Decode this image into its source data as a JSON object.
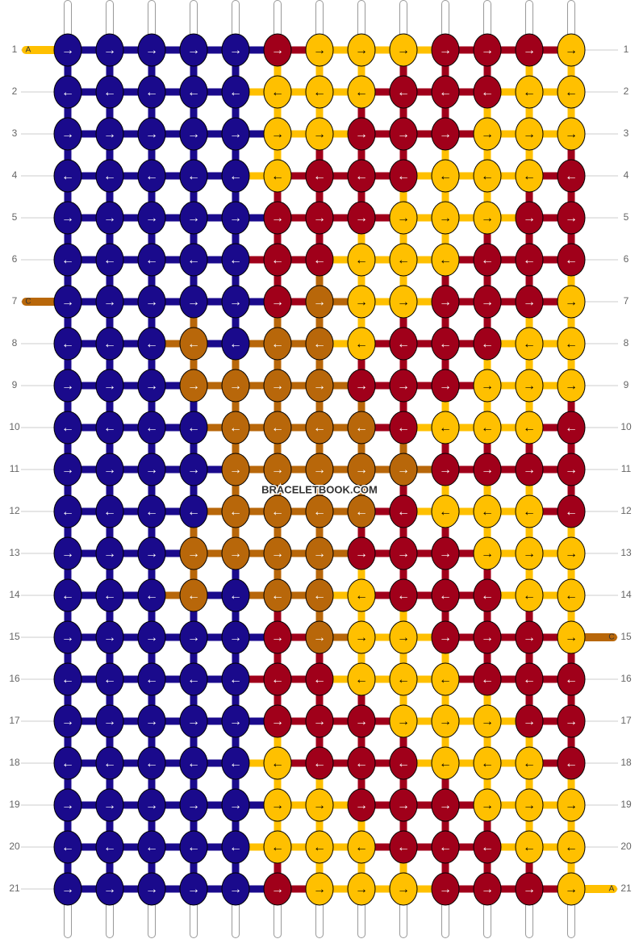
{
  "watermark": "BRACELETBOOK.COM",
  "rows": [
    {
      "label": "1",
      "arrow": "→",
      "left_tag": {
        "text": "A",
        "color": "#ffc000"
      },
      "colors": [
        "#1a0a8c",
        "#1a0a8c",
        "#1a0a8c",
        "#1a0a8c",
        "#1a0a8c",
        "#a0001a",
        "#ffc000",
        "#ffc000",
        "#ffc000",
        "#a0001a",
        "#a0001a",
        "#a0001a",
        "#ffc000"
      ]
    },
    {
      "label": "2",
      "arrow": "←",
      "colors": [
        "#1a0a8c",
        "#1a0a8c",
        "#1a0a8c",
        "#1a0a8c",
        "#1a0a8c",
        "#ffc000",
        "#ffc000",
        "#ffc000",
        "#a0001a",
        "#a0001a",
        "#a0001a",
        "#ffc000",
        "#ffc000"
      ]
    },
    {
      "label": "3",
      "arrow": "→",
      "colors": [
        "#1a0a8c",
        "#1a0a8c",
        "#1a0a8c",
        "#1a0a8c",
        "#1a0a8c",
        "#ffc000",
        "#ffc000",
        "#a0001a",
        "#a0001a",
        "#a0001a",
        "#ffc000",
        "#ffc000",
        "#ffc000"
      ]
    },
    {
      "label": "4",
      "arrow": "←",
      "colors": [
        "#1a0a8c",
        "#1a0a8c",
        "#1a0a8c",
        "#1a0a8c",
        "#1a0a8c",
        "#ffc000",
        "#a0001a",
        "#a0001a",
        "#a0001a",
        "#ffc000",
        "#ffc000",
        "#ffc000",
        "#a0001a"
      ]
    },
    {
      "label": "5",
      "arrow": "→",
      "colors": [
        "#1a0a8c",
        "#1a0a8c",
        "#1a0a8c",
        "#1a0a8c",
        "#1a0a8c",
        "#a0001a",
        "#a0001a",
        "#a0001a",
        "#ffc000",
        "#ffc000",
        "#ffc000",
        "#a0001a",
        "#a0001a"
      ]
    },
    {
      "label": "6",
      "arrow": "←",
      "colors": [
        "#1a0a8c",
        "#1a0a8c",
        "#1a0a8c",
        "#1a0a8c",
        "#1a0a8c",
        "#a0001a",
        "#a0001a",
        "#ffc000",
        "#ffc000",
        "#ffc000",
        "#a0001a",
        "#a0001a",
        "#a0001a"
      ]
    },
    {
      "label": "7",
      "arrow": "→",
      "left_tag": {
        "text": "C",
        "color": "#b8670a"
      },
      "colors": [
        "#1a0a8c",
        "#1a0a8c",
        "#1a0a8c",
        "#1a0a8c",
        "#1a0a8c",
        "#a0001a",
        "#b8670a",
        "#ffc000",
        "#ffc000",
        "#a0001a",
        "#a0001a",
        "#a0001a",
        "#ffc000"
      ]
    },
    {
      "label": "8",
      "arrow": "←",
      "colors": [
        "#1a0a8c",
        "#1a0a8c",
        "#1a0a8c",
        "#b8670a",
        "#1a0a8c",
        "#b8670a",
        "#b8670a",
        "#ffc000",
        "#a0001a",
        "#a0001a",
        "#a0001a",
        "#ffc000",
        "#ffc000"
      ]
    },
    {
      "label": "9",
      "arrow": "→",
      "colors": [
        "#1a0a8c",
        "#1a0a8c",
        "#1a0a8c",
        "#b8670a",
        "#b8670a",
        "#b8670a",
        "#b8670a",
        "#a0001a",
        "#a0001a",
        "#a0001a",
        "#ffc000",
        "#ffc000",
        "#ffc000"
      ]
    },
    {
      "label": "10",
      "arrow": "←",
      "colors": [
        "#1a0a8c",
        "#1a0a8c",
        "#1a0a8c",
        "#1a0a8c",
        "#b8670a",
        "#b8670a",
        "#b8670a",
        "#b8670a",
        "#a0001a",
        "#ffc000",
        "#ffc000",
        "#ffc000",
        "#a0001a"
      ]
    },
    {
      "label": "11",
      "arrow": "→",
      "colors": [
        "#1a0a8c",
        "#1a0a8c",
        "#1a0a8c",
        "#1a0a8c",
        "#b8670a",
        "#b8670a",
        "#b8670a",
        "#b8670a",
        "#b8670a",
        "#a0001a",
        "#a0001a",
        "#a0001a",
        "#a0001a"
      ]
    },
    {
      "label": "12",
      "arrow": "←",
      "colors": [
        "#1a0a8c",
        "#1a0a8c",
        "#1a0a8c",
        "#1a0a8c",
        "#b8670a",
        "#b8670a",
        "#b8670a",
        "#b8670a",
        "#a0001a",
        "#ffc000",
        "#ffc000",
        "#ffc000",
        "#a0001a"
      ]
    },
    {
      "label": "13",
      "arrow": "→",
      "colors": [
        "#1a0a8c",
        "#1a0a8c",
        "#1a0a8c",
        "#b8670a",
        "#b8670a",
        "#b8670a",
        "#b8670a",
        "#a0001a",
        "#a0001a",
        "#a0001a",
        "#ffc000",
        "#ffc000",
        "#ffc000"
      ]
    },
    {
      "label": "14",
      "arrow": "←",
      "colors": [
        "#1a0a8c",
        "#1a0a8c",
        "#1a0a8c",
        "#b8670a",
        "#1a0a8c",
        "#b8670a",
        "#b8670a",
        "#ffc000",
        "#a0001a",
        "#a0001a",
        "#a0001a",
        "#ffc000",
        "#ffc000"
      ]
    },
    {
      "label": "15",
      "arrow": "→",
      "right_tag": {
        "text": "C",
        "color": "#b8670a"
      },
      "colors": [
        "#1a0a8c",
        "#1a0a8c",
        "#1a0a8c",
        "#1a0a8c",
        "#1a0a8c",
        "#a0001a",
        "#b8670a",
        "#ffc000",
        "#ffc000",
        "#a0001a",
        "#a0001a",
        "#a0001a",
        "#ffc000"
      ]
    },
    {
      "label": "16",
      "arrow": "←",
      "colors": [
        "#1a0a8c",
        "#1a0a8c",
        "#1a0a8c",
        "#1a0a8c",
        "#1a0a8c",
        "#a0001a",
        "#a0001a",
        "#ffc000",
        "#ffc000",
        "#ffc000",
        "#a0001a",
        "#a0001a",
        "#a0001a"
      ]
    },
    {
      "label": "17",
      "arrow": "→",
      "colors": [
        "#1a0a8c",
        "#1a0a8c",
        "#1a0a8c",
        "#1a0a8c",
        "#1a0a8c",
        "#a0001a",
        "#a0001a",
        "#a0001a",
        "#ffc000",
        "#ffc000",
        "#ffc000",
        "#a0001a",
        "#a0001a"
      ]
    },
    {
      "label": "18",
      "arrow": "←",
      "colors": [
        "#1a0a8c",
        "#1a0a8c",
        "#1a0a8c",
        "#1a0a8c",
        "#1a0a8c",
        "#ffc000",
        "#a0001a",
        "#a0001a",
        "#a0001a",
        "#ffc000",
        "#ffc000",
        "#ffc000",
        "#a0001a"
      ]
    },
    {
      "label": "19",
      "arrow": "→",
      "colors": [
        "#1a0a8c",
        "#1a0a8c",
        "#1a0a8c",
        "#1a0a8c",
        "#1a0a8c",
        "#ffc000",
        "#ffc000",
        "#a0001a",
        "#a0001a",
        "#a0001a",
        "#ffc000",
        "#ffc000",
        "#ffc000"
      ]
    },
    {
      "label": "20",
      "arrow": "←",
      "colors": [
        "#1a0a8c",
        "#1a0a8c",
        "#1a0a8c",
        "#1a0a8c",
        "#1a0a8c",
        "#ffc000",
        "#ffc000",
        "#ffc000",
        "#a0001a",
        "#a0001a",
        "#a0001a",
        "#ffc000",
        "#ffc000"
      ]
    },
    {
      "label": "21",
      "arrow": "→",
      "right_tag": {
        "text": "A",
        "color": "#ffc000"
      },
      "colors": [
        "#1a0a8c",
        "#1a0a8c",
        "#1a0a8c",
        "#1a0a8c",
        "#1a0a8c",
        "#a0001a",
        "#ffc000",
        "#ffc000",
        "#ffc000",
        "#a0001a",
        "#a0001a",
        "#a0001a",
        "#ffc000"
      ]
    }
  ]
}
